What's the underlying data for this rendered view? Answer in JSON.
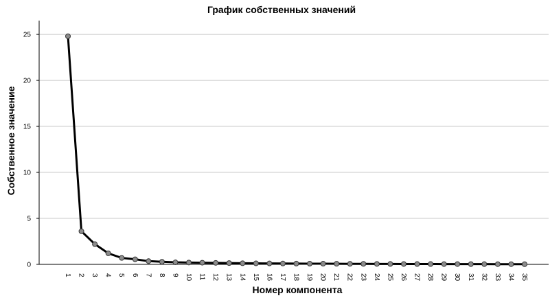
{
  "chart_data": {
    "type": "line",
    "title": "График собственных значений",
    "xlabel": "Номер компонента",
    "ylabel": "Собственное значение",
    "categories": [
      "1",
      "2",
      "3",
      "4",
      "5",
      "6",
      "7",
      "8",
      "9",
      "10",
      "11",
      "12",
      "13",
      "14",
      "15",
      "16",
      "17",
      "18",
      "19",
      "20",
      "21",
      "22",
      "23",
      "24",
      "25",
      "26",
      "27",
      "28",
      "29",
      "30",
      "31",
      "32",
      "33",
      "34",
      "35"
    ],
    "series": [
      {
        "values": [
          24.8,
          3.6,
          2.2,
          1.2,
          0.7,
          0.55,
          0.35,
          0.28,
          0.22,
          0.2,
          0.18,
          0.16,
          0.14,
          0.12,
          0.11,
          0.1,
          0.09,
          0.08,
          0.075,
          0.07,
          0.065,
          0.06,
          0.055,
          0.05,
          0.045,
          0.04,
          0.038,
          0.035,
          0.032,
          0.03,
          0.028,
          0.025,
          0.022,
          0.02,
          0.018
        ]
      }
    ],
    "yticks": [
      "0",
      "5",
      "10",
      "15",
      "20",
      "25"
    ],
    "ylim": [
      0,
      26.5
    ],
    "grid": "horizontal",
    "colors": {
      "line": "#000000",
      "marker_fill": "#8c8c8c",
      "marker_stroke": "#333333",
      "grid": "#c8c8c8"
    }
  }
}
